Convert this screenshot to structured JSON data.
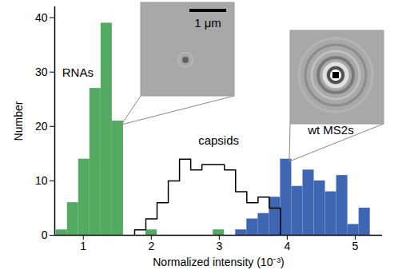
{
  "chart_data": {
    "type": "histogram",
    "x_label": "Normalized intensity (10⁻³)",
    "y_label": "Number",
    "bins": [
      0.6,
      0.765,
      0.93,
      1.095,
      1.26,
      1.425,
      1.59,
      1.755,
      1.92,
      2.085,
      2.25,
      2.415,
      2.58,
      2.745,
      2.91,
      3.075,
      3.24,
      3.405,
      3.57,
      3.735,
      3.9,
      4.065,
      4.23,
      4.395,
      4.56,
      4.725,
      4.89,
      5.055,
      5.22
    ],
    "series": [
      {
        "name": "RNAs",
        "type": "bar",
        "color": "#55aa62",
        "values": [
          1,
          6,
          14,
          27,
          39,
          21,
          0,
          0,
          1,
          0,
          0,
          0,
          0,
          0,
          1,
          0,
          0,
          0,
          0,
          0,
          0,
          0,
          0,
          0,
          0,
          0,
          0,
          0
        ]
      },
      {
        "name": "wt MS2s",
        "type": "bar",
        "color": "#3f66b3",
        "values": [
          0,
          0,
          0,
          0,
          0,
          0,
          0,
          0,
          0,
          0,
          0,
          0,
          0,
          0,
          0,
          0,
          1,
          3,
          4,
          7,
          14,
          9,
          12,
          10,
          8,
          11,
          2,
          5
        ]
      },
      {
        "name": "capsids",
        "type": "step",
        "color": "#000000",
        "values": [
          0,
          0,
          0,
          0,
          0,
          0,
          0,
          1,
          3,
          6,
          10,
          14,
          12,
          13,
          13,
          12,
          8,
          6,
          7,
          5,
          0,
          0,
          0,
          0,
          0,
          0,
          0,
          0
        ]
      }
    ],
    "xlim": [
      0.58,
      5.4
    ],
    "xticks": [
      1,
      2,
      3,
      4,
      5
    ],
    "ylim": [
      0,
      42
    ],
    "yticks": [
      0,
      10,
      20,
      30,
      40
    ],
    "grid": false,
    "annotations": [
      "1 μm"
    ]
  }
}
